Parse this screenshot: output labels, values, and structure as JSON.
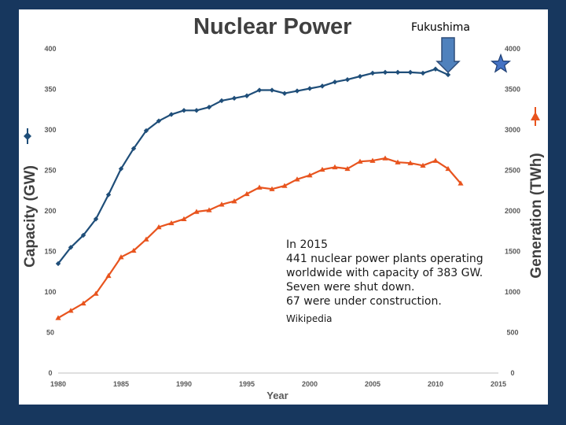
{
  "slide": {
    "title": "Nuclear Power",
    "fukushima_label": "Fukushima",
    "note_lines": [
      "In 2015",
      "441 nuclear power plants operating",
      "worldwide with capacity of 383 GW.",
      "Seven were shut down.",
      "67 were under construction."
    ],
    "note_source": "Wikipedia"
  },
  "chart_data": {
    "type": "line",
    "xlabel": "Year",
    "ylabel_left": "Capacity (GW)",
    "ylabel_right": "Generation (TWh)",
    "xlim": [
      1980,
      2015
    ],
    "x_ticks": [
      "1980",
      "1985",
      "1990",
      "1995",
      "2000",
      "2005",
      "2010",
      "2015"
    ],
    "ylim_left": [
      0,
      400
    ],
    "y_ticks_left": [
      "0",
      "50",
      "100",
      "150",
      "200",
      "250",
      "300",
      "350",
      "400"
    ],
    "ylim_right": [
      0,
      4000
    ],
    "y_ticks_right": [
      "0",
      "500",
      "1000",
      "1500",
      "2000",
      "2500",
      "3000",
      "3500",
      "4000"
    ],
    "grid": false,
    "series": [
      {
        "axis": "left",
        "color": "#1f4e79",
        "marker": "diamond",
        "x": [
          1980,
          1981,
          1982,
          1983,
          1984,
          1985,
          1986,
          1987,
          1988,
          1989,
          1990,
          1991,
          1992,
          1993,
          1994,
          1995,
          1996,
          1997,
          1998,
          1999,
          2000,
          2001,
          2002,
          2003,
          2004,
          2005,
          2006,
          2007,
          2008,
          2009,
          2010,
          2011
        ],
        "values": [
          135,
          155,
          170,
          190,
          220,
          252,
          277,
          299,
          311,
          319,
          324,
          324,
          328,
          336,
          339,
          342,
          349,
          349,
          345,
          348,
          351,
          354,
          359,
          362,
          366,
          370,
          371,
          371,
          371,
          370,
          375,
          368
        ]
      },
      {
        "axis": "right",
        "color": "#e8541e",
        "marker": "triangle",
        "x": [
          1980,
          1981,
          1982,
          1983,
          1984,
          1985,
          1986,
          1987,
          1988,
          1989,
          1990,
          1991,
          1992,
          1993,
          1994,
          1995,
          1996,
          1997,
          1998,
          1999,
          2000,
          2001,
          2002,
          2003,
          2004,
          2005,
          2006,
          2007,
          2008,
          2009,
          2010,
          2011,
          2012
        ],
        "values": [
          680,
          770,
          860,
          980,
          1200,
          1430,
          1510,
          1650,
          1800,
          1850,
          1900,
          1990,
          2010,
          2080,
          2120,
          2210,
          2290,
          2270,
          2310,
          2390,
          2440,
          2510,
          2540,
          2520,
          2610,
          2620,
          2650,
          2600,
          2590,
          2560,
          2620,
          2520,
          2340
        ]
      }
    ],
    "annotation": {
      "label": "Fukushima",
      "x": 2011
    },
    "markers": [
      {
        "axis": "left",
        "shape": "star",
        "color": "#4472c4",
        "value": 383
      }
    ],
    "legend_markers": [
      {
        "axis": "left",
        "shape": "diamond",
        "color": "#1f4e79"
      },
      {
        "axis": "right",
        "shape": "triangle",
        "color": "#e8541e"
      }
    ]
  }
}
